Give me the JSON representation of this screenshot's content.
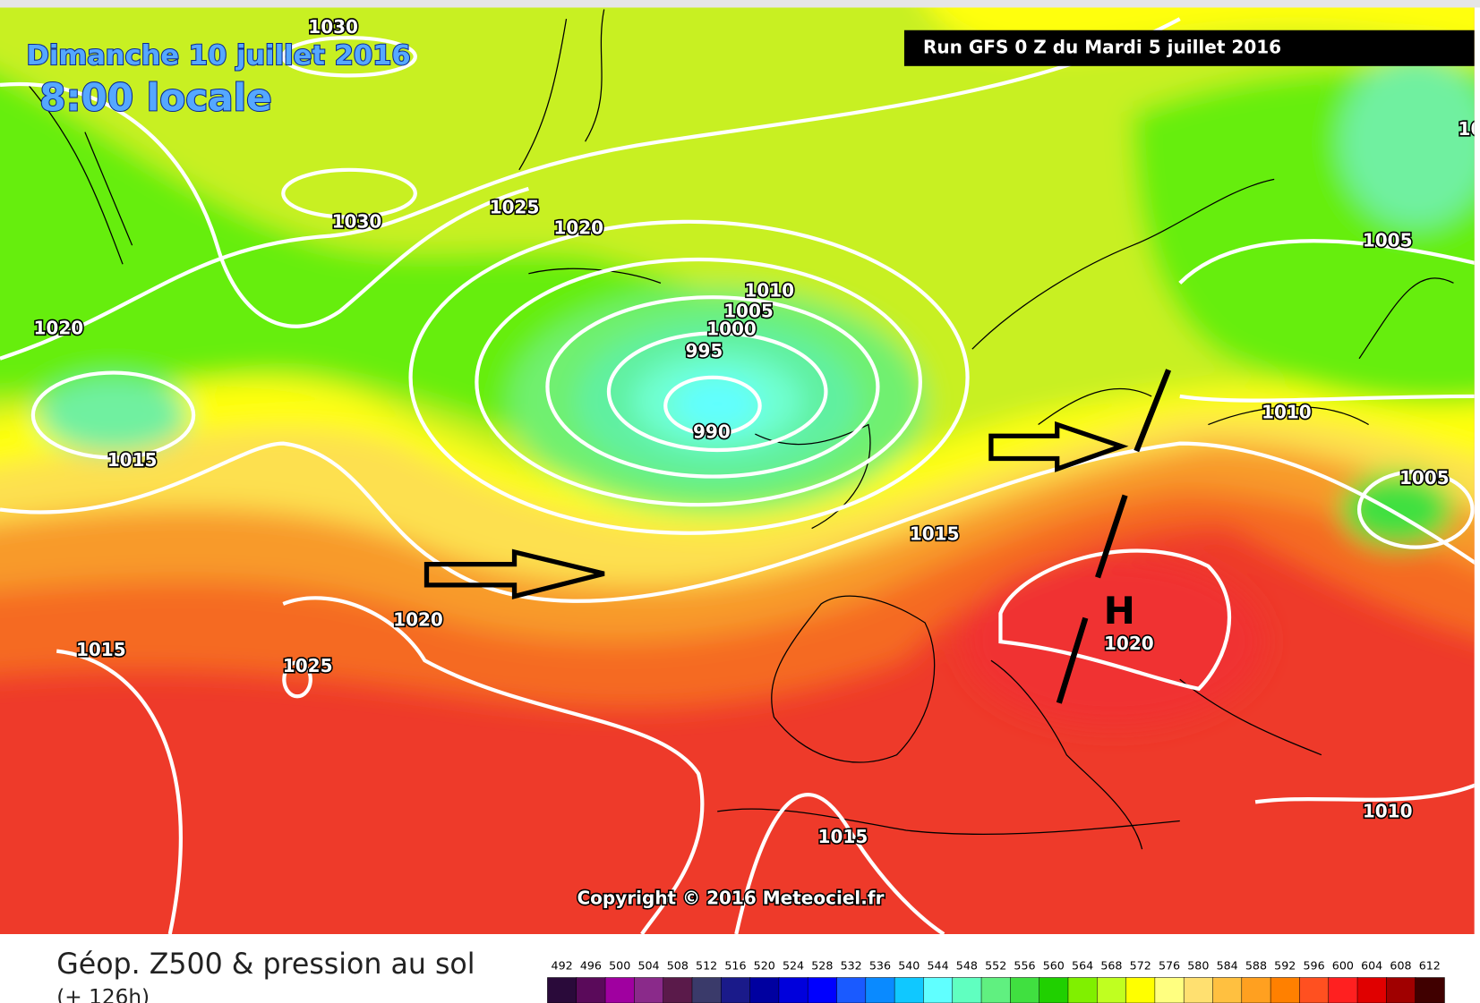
{
  "header": {
    "date": "Dimanche 10 juillet 2016",
    "time": "8:00 locale",
    "run": "Run GFS 0 Z du Mardi 5 juillet 2016"
  },
  "map": {
    "isobar_labels": [
      "1030",
      "1030",
      "1025",
      "1020",
      "1020",
      "1015",
      "1010",
      "1005",
      "1000",
      "995",
      "990",
      "1015",
      "1020",
      "1015",
      "1025",
      "1020",
      "1015",
      "1010",
      "1005",
      "1005",
      "1010",
      "10"
    ],
    "high_marker": "H",
    "copyright": "Copyright © 2016 Meteociel.fr"
  },
  "footer": {
    "title": "Géop. Z500 & pression au sol",
    "subtitle": "(+ 126h)",
    "legend": {
      "values": [
        492,
        496,
        500,
        504,
        508,
        512,
        516,
        520,
        524,
        528,
        532,
        536,
        540,
        544,
        548,
        552,
        556,
        560,
        564,
        568,
        572,
        576,
        580,
        584,
        588,
        592,
        596,
        600,
        604,
        608,
        612
      ],
      "colors": [
        "#2a0a3a",
        "#5a0a5a",
        "#a000a0",
        "#8a2a8a",
        "#5a1a4a",
        "#3a3a6a",
        "#1a1a8a",
        "#0000a0",
        "#0000dc",
        "#0000ff",
        "#1a5aff",
        "#0a8aff",
        "#10c8ff",
        "#60ffff",
        "#60ffc0",
        "#60f080",
        "#40e040",
        "#20d000",
        "#80f000",
        "#c0ff20",
        "#ffff00",
        "#ffff80",
        "#ffe070",
        "#ffc040",
        "#ffa020",
        "#ff8000",
        "#ff5020",
        "#ff2020",
        "#e00000",
        "#a00000",
        "#400000"
      ]
    }
  }
}
